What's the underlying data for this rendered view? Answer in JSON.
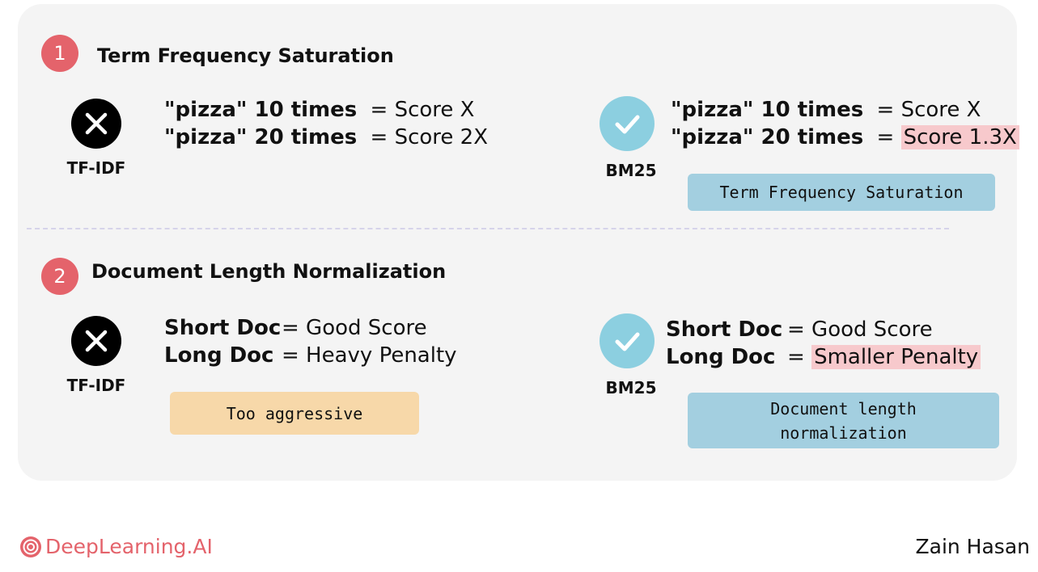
{
  "section1": {
    "number": "1",
    "title": "Term Frequency Saturation",
    "left": {
      "tool": "TF-IDF",
      "line1_bold": "\"pizza\" 10 times",
      "line1_rest": "= Score X",
      "line2_bold": "\"pizza\" 20 times",
      "line2_rest": "= Score 2X"
    },
    "right": {
      "tool": "BM25",
      "line1_bold": "\"pizza\" 10 times",
      "line1_rest": "= Score X",
      "line2_bold": "\"pizza\" 20 times",
      "line2_eq": "=",
      "line2_highlight": "Score 1.3X",
      "note": "Term Frequency Saturation"
    }
  },
  "section2": {
    "number": "2",
    "title": "Document Length Normalization",
    "left": {
      "tool": "TF-IDF",
      "line1_bold": "Short Doc",
      "line1_rest": "= Good Score",
      "line2_bold": "Long Doc",
      "line2_rest": "= Heavy Penalty",
      "note": "Too aggressive"
    },
    "right": {
      "tool": "BM25",
      "line1_bold": "Short Doc",
      "line1_rest": "= Good Score",
      "line2_bold": "Long Doc",
      "line2_eq": "=",
      "line2_highlight": "Smaller Penalty",
      "note_line1": "Document length",
      "note_line2": "normalization"
    }
  },
  "footer": {
    "brand": "DeepLearning.AI",
    "author": "Zain Hasan"
  },
  "colors": {
    "number_badge": "#e4636b",
    "check_circle": "#8ccfe0",
    "highlight": "#f7c9cc",
    "note_blue": "#a3cfe0",
    "note_orange": "#f7d8a9",
    "brand": "#e4636b"
  },
  "icons": [
    "x-icon",
    "check-icon",
    "brand-logo-icon"
  ]
}
